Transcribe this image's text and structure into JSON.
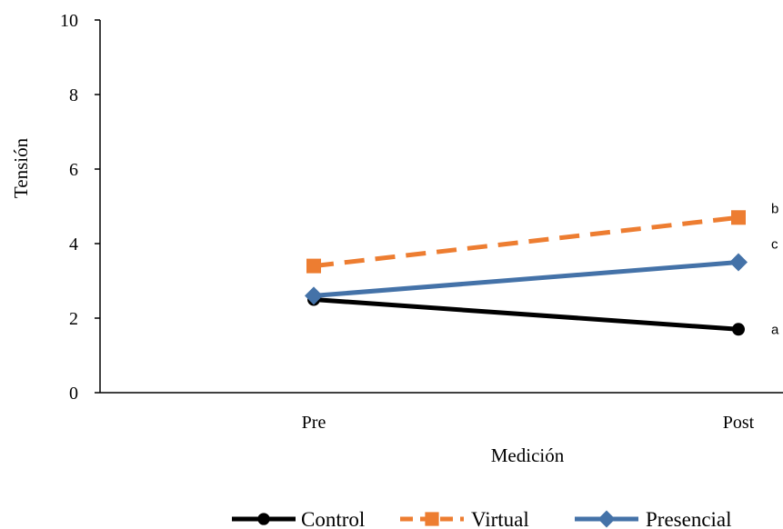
{
  "chart_data": {
    "type": "line",
    "categories": [
      "Pre",
      "Post"
    ],
    "xlabel": "Medición",
    "ylabel": "Tensión",
    "ylim": [
      0,
      10
    ],
    "yticks": [
      "0",
      "2",
      "4",
      "6",
      "8",
      "10"
    ],
    "grid": false,
    "legend_position": "bottom",
    "series": [
      {
        "name": "Control",
        "values": [
          2.5,
          1.7
        ],
        "color": "#000000",
        "dash": "solid",
        "marker": "circle",
        "annotation": "a"
      },
      {
        "name": "Virtual",
        "values": [
          3.4,
          4.7
        ],
        "color": "#ED7D31",
        "dash": "dashed",
        "marker": "square",
        "annotation": "b"
      },
      {
        "name": "Presencial",
        "values": [
          2.6,
          3.5
        ],
        "color": "#4472A8",
        "dash": "solid",
        "marker": "diamond",
        "annotation": "c"
      }
    ]
  }
}
